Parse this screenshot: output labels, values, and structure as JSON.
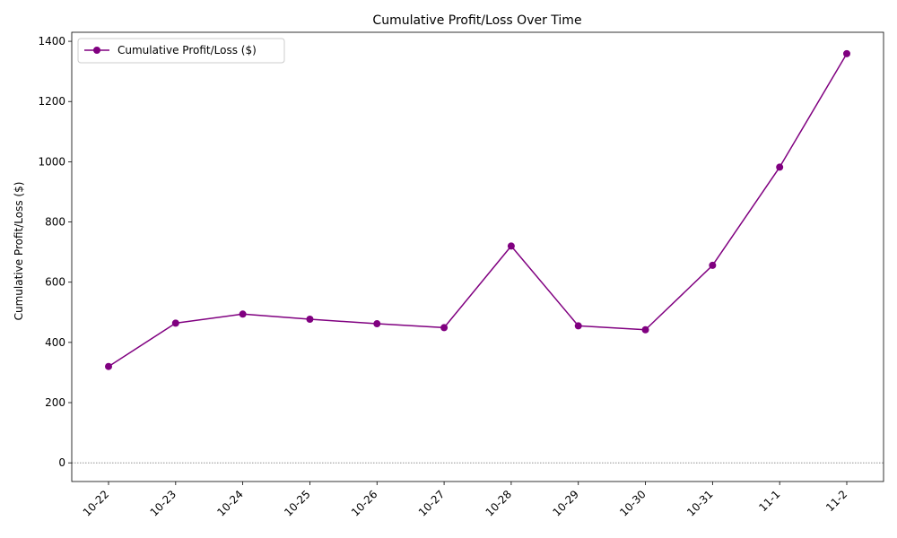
{
  "chart_data": {
    "type": "line",
    "title": "Cumulative Profit/Loss Over Time",
    "xlabel": "",
    "ylabel": "Cumulative Profit/Loss ($)",
    "categories": [
      "10-22",
      "10-23",
      "10-24",
      "10-25",
      "10-26",
      "10-27",
      "10-28",
      "10-29",
      "10-30",
      "10-31",
      "11-1",
      "11-2"
    ],
    "series": [
      {
        "name": "Cumulative Profit/Loss ($)",
        "values": [
          320,
          464,
          494,
          477,
          462,
          449,
          720,
          455,
          442,
          656,
          982,
          1359
        ],
        "color": "#800080",
        "marker": "circle"
      }
    ],
    "ylim": [
      -62,
      1430
    ],
    "yticks": [
      0,
      200,
      400,
      600,
      800,
      1000,
      1200,
      1400
    ],
    "reference_line": {
      "y": 0,
      "color": "#808080",
      "style": "dotted"
    },
    "grid": false,
    "legend_position": "top-left"
  }
}
